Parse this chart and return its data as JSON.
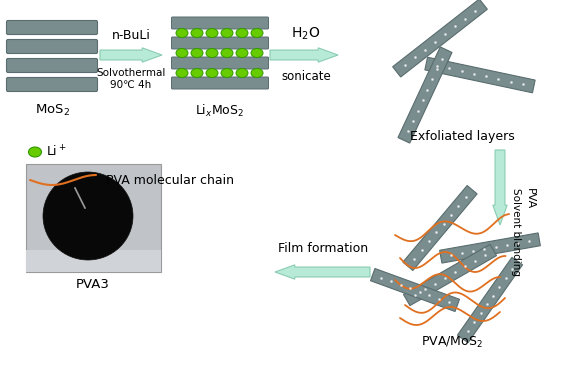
{
  "bg_color": "#ffffff",
  "mos2_color": "#7a8d8e",
  "mos2_border": "#5a6d6e",
  "arrow_color": "#b8ead8",
  "arrow_edge": "#88ccb0",
  "li_fill": "#66cc00",
  "li_edge": "#339900",
  "pva_chain_color": "#e07020",
  "text_color": "#000000",
  "label_mos2": "MoS$_2$",
  "label_lixmos2": "Li$_x$MoS$_2$",
  "label_exfoliated": "Exfoliated layers",
  "label_pva3": "PVA3",
  "label_pvamos2": "PVA/MoS$_2$",
  "label_li": "Li$^+$",
  "label_pva_chain": "PVA molecular chain",
  "label_nbuli": "n-BuLi",
  "label_solvothermal": "Solvothermal\n90℃ 4h",
  "label_h2o": "H$_2$O",
  "label_sonicate": "sonicate",
  "label_solvent": "Solvent blending",
  "label_pva_arrow": "PVA",
  "label_film": "Film formation",
  "photo_bg": "#c8c8c8",
  "photo_edge": "#aaaaaa",
  "film_color": "#080808"
}
